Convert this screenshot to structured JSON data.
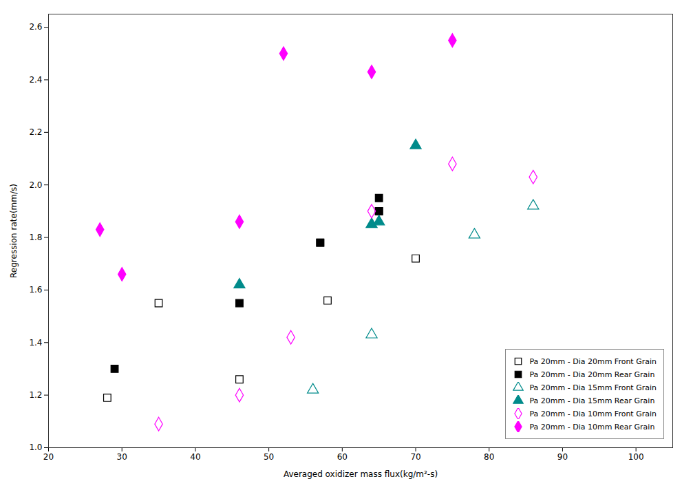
{
  "chart_data": {
    "type": "scatter",
    "xlabel": "Averaged oxidizer mass flux(kg/m²-s)",
    "ylabel": "Regression rate(mm/s)",
    "xlim": [
      20,
      105
    ],
    "ylim": [
      1.0,
      2.65
    ],
    "xticks": [
      20,
      30,
      40,
      50,
      60,
      70,
      80,
      90,
      100
    ],
    "yticks": [
      {
        "value": 1.0,
        "label": "1.0"
      },
      1.2,
      1.4,
      1.6,
      1.8,
      {
        "value": 2.0,
        "label": "2.0"
      },
      2.2,
      2.4,
      2.6
    ],
    "legend": "lower right",
    "series": [
      {
        "name": "Pa 20mm - Dia 20mm Front Grain",
        "color": "black",
        "marker": "square-open",
        "x": [
          28,
          35,
          46,
          57,
          58,
          65,
          70
        ],
        "values": [
          1.19,
          1.55,
          1.26,
          1.78,
          1.56,
          1.9,
          1.72
        ]
      },
      {
        "name": "Pa 20mm - Dia 20mm Rear Grain",
        "color": "black",
        "marker": "square",
        "x": [
          29,
          46,
          57,
          65,
          65
        ],
        "values": [
          1.3,
          1.55,
          1.78,
          1.95,
          1.9
        ]
      },
      {
        "name": "Pa 20mm - Dia 15mm Front Grain",
        "color": "#008B8B",
        "marker": "triangle-open",
        "x": [
          56,
          64,
          78,
          86
        ],
        "values": [
          1.22,
          1.43,
          1.81,
          1.92
        ]
      },
      {
        "name": "Pa 20mm - Dia 15mm Rear Grain",
        "color": "#008B8B",
        "marker": "triangle",
        "x": [
          46,
          64,
          65,
          70
        ],
        "values": [
          1.62,
          1.85,
          1.86,
          2.15
        ]
      },
      {
        "name": "Pa 20mm - Dia 10mm Front Grain",
        "color": "magenta",
        "marker": "diamond-open",
        "x": [
          35,
          46,
          53,
          64,
          75,
          86
        ],
        "values": [
          1.09,
          1.2,
          1.42,
          1.9,
          2.08,
          2.03
        ]
      },
      {
        "name": "Pa 20mm - Dia 10mm Rear Grain",
        "color": "magenta",
        "marker": "diamond",
        "x": [
          27,
          30,
          46,
          52,
          64,
          75
        ],
        "values": [
          1.83,
          1.66,
          1.86,
          2.5,
          2.43,
          2.55
        ]
      }
    ]
  }
}
